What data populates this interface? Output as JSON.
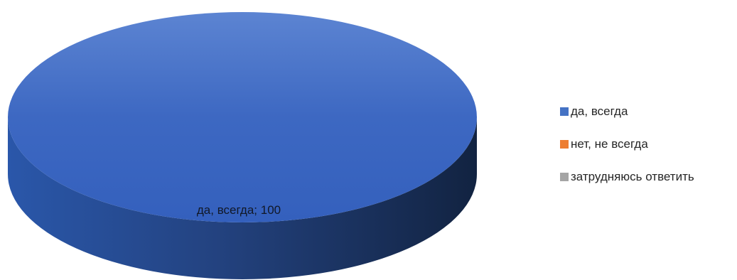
{
  "chart_data": {
    "type": "pie",
    "style": "3d",
    "categories": [
      "да, всегда",
      "нет, не всегда",
      "затрудняюсь ответить"
    ],
    "values": [
      100,
      0,
      0
    ],
    "colors": [
      "#4472c4",
      "#ed7d31",
      "#a5a5a5"
    ],
    "data_labels": [
      {
        "category": "да, всегда",
        "value": 100,
        "text": "да, всегда; 100"
      }
    ],
    "legend_position": "right",
    "title": ""
  }
}
